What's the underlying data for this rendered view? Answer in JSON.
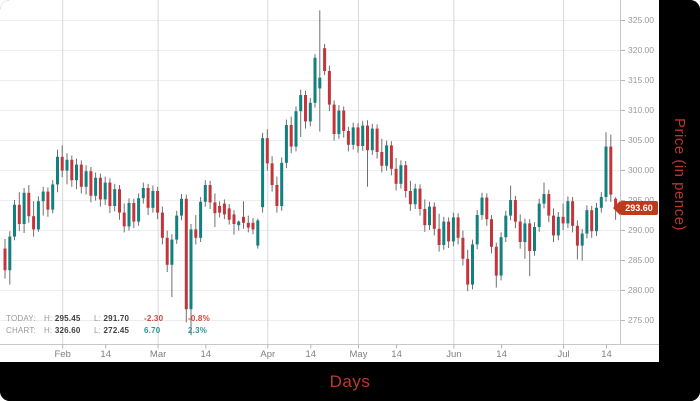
{
  "chart_data": {
    "type": "candlestick",
    "title": "",
    "xlabel": "Days",
    "ylabel": "Price (in pence)",
    "x_axis": {
      "tick_labels": [
        {
          "label": "Feb",
          "index": 12,
          "month_start": true
        },
        {
          "label": "14",
          "index": 21,
          "month_start": false
        },
        {
          "label": "Mar",
          "index": 32,
          "month_start": true
        },
        {
          "label": "14",
          "index": 42,
          "month_start": false
        },
        {
          "label": "Apr",
          "index": 55,
          "month_start": true
        },
        {
          "label": "14",
          "index": 64,
          "month_start": false
        },
        {
          "label": "May",
          "index": 74,
          "month_start": true
        },
        {
          "label": "14",
          "index": 82,
          "month_start": false
        },
        {
          "label": "Jun",
          "index": 94,
          "month_start": true
        },
        {
          "label": "14",
          "index": 104,
          "month_start": false
        },
        {
          "label": "Jul",
          "index": 117,
          "month_start": true
        },
        {
          "label": "14",
          "index": 126,
          "month_start": false
        }
      ]
    },
    "y_axis": {
      "ticks": [
        325,
        320,
        315,
        310,
        305,
        300,
        295,
        290,
        285,
        280,
        275
      ],
      "decimals": 2,
      "range": [
        271,
        328
      ]
    },
    "last_price": 293.6,
    "last_price_label": "293.60",
    "stats": {
      "today": {
        "label": "TODAY:",
        "high_label": "H:",
        "high": "295.45",
        "low_label": "L:",
        "low": "291.70",
        "change": "-2.30",
        "change_pct": "-0.8%"
      },
      "chart": {
        "label": "CHART:",
        "high_label": "H:",
        "high": "326.60",
        "low_label": "L:",
        "low": "272.45",
        "change": "6.70",
        "change_pct": "2.3%"
      }
    },
    "colors": {
      "up": "#12807e",
      "down": "#c3353b",
      "wick": "#6f6f6f",
      "tag": "#bd3a1d",
      "grid": "#ededed",
      "month_grid": "#d9d9d9",
      "axis_line": "#c8c8c8",
      "axis_text": "#9b9b9b",
      "title_red": "#c0382e"
    },
    "candles_ohlc": [
      [
        286.9,
        288.5,
        281.9,
        283.3
      ],
      [
        283.3,
        289.8,
        280.9,
        288.9
      ],
      [
        288.9,
        295.0,
        288.3,
        294.2
      ],
      [
        294.2,
        296.3,
        289.8,
        291.0
      ],
      [
        291.0,
        297.0,
        289.5,
        296.2
      ],
      [
        296.2,
        297.5,
        291.2,
        292.3
      ],
      [
        292.3,
        294.8,
        288.9,
        290.1
      ],
      [
        290.1,
        295.6,
        289.7,
        294.8
      ],
      [
        294.8,
        297.2,
        292.4,
        296.4
      ],
      [
        296.4,
        297.1,
        292.2,
        293.4
      ],
      [
        293.4,
        298.3,
        292.8,
        297.6
      ],
      [
        297.6,
        303.4,
        296.3,
        302.2
      ],
      [
        302.2,
        304.1,
        298.8,
        299.9
      ],
      [
        299.9,
        302.8,
        297.6,
        301.7
      ],
      [
        301.7,
        302.4,
        297.2,
        298.3
      ],
      [
        298.3,
        301.9,
        296.8,
        300.9
      ],
      [
        300.9,
        301.6,
        296.1,
        297.2
      ],
      [
        297.2,
        300.8,
        295.9,
        299.8
      ],
      [
        299.8,
        300.5,
        294.6,
        295.7
      ],
      [
        295.7,
        299.6,
        294.9,
        298.7
      ],
      [
        298.7,
        299.4,
        293.9,
        295.1
      ],
      [
        295.1,
        298.9,
        294.2,
        297.9
      ],
      [
        297.9,
        298.6,
        292.8,
        294.0
      ],
      [
        294.0,
        297.7,
        293.1,
        296.8
      ],
      [
        296.8,
        297.5,
        291.7,
        292.9
      ],
      [
        292.9,
        294.4,
        289.6,
        290.6
      ],
      [
        290.6,
        295.3,
        289.9,
        294.5
      ],
      [
        294.5,
        295.2,
        290.3,
        291.4
      ],
      [
        291.4,
        296.1,
        290.7,
        295.3
      ],
      [
        295.3,
        297.9,
        294.4,
        297.0
      ],
      [
        297.0,
        297.7,
        292.5,
        293.7
      ],
      [
        293.7,
        297.4,
        292.9,
        296.5
      ],
      [
        296.5,
        297.2,
        291.8,
        292.9
      ],
      [
        292.9,
        293.9,
        287.6,
        288.7
      ],
      [
        288.7,
        289.9,
        283.0,
        284.2
      ],
      [
        284.2,
        289.3,
        278.8,
        288.4
      ],
      [
        288.4,
        293.2,
        287.7,
        292.4
      ],
      [
        292.4,
        296.0,
        291.6,
        295.2
      ],
      [
        295.2,
        295.9,
        274.6,
        276.8
      ],
      [
        276.8,
        291.0,
        272.45,
        290.1
      ],
      [
        290.1,
        292.5,
        287.6,
        288.7
      ],
      [
        288.7,
        295.5,
        288.0,
        294.7
      ],
      [
        294.7,
        298.3,
        293.9,
        297.5
      ],
      [
        297.5,
        298.2,
        293.5,
        294.6
      ],
      [
        294.6,
        296.1,
        290.5,
        292.8
      ],
      [
        294.0,
        294.8,
        292.1,
        292.9
      ],
      [
        294.4,
        295.1,
        291.8,
        292.6
      ],
      [
        293.6,
        294.3,
        290.9,
        291.7
      ],
      [
        292.6,
        293.3,
        289.2,
        291.0
      ],
      [
        290.8,
        291.6,
        289.9,
        291.4
      ],
      [
        292.2,
        294.8,
        290.2,
        291.2
      ],
      [
        291.2,
        292.4,
        289.6,
        290.4
      ],
      [
        291.2,
        292.0,
        289.3,
        290.1
      ],
      [
        287.4,
        291.9,
        286.9,
        291.6
      ],
      [
        293.8,
        306.2,
        292.9,
        305.3
      ],
      [
        305.3,
        306.8,
        299.9,
        301.1
      ],
      [
        301.1,
        302.3,
        296.4,
        297.5
      ],
      [
        297.5,
        298.9,
        292.9,
        294.0
      ],
      [
        294.0,
        302.1,
        293.2,
        301.2
      ],
      [
        301.2,
        308.4,
        300.3,
        307.5
      ],
      [
        307.5,
        308.9,
        302.8,
        303.9
      ],
      [
        303.9,
        310.6,
        303.1,
        309.8
      ],
      [
        309.8,
        313.4,
        305.5,
        312.5
      ],
      [
        312.5,
        313.2,
        306.9,
        308.1
      ],
      [
        308.1,
        312.0,
        307.3,
        311.2
      ],
      [
        311.2,
        319.3,
        310.4,
        318.7
      ],
      [
        313.6,
        326.6,
        306.4,
        315.4
      ],
      [
        320.3,
        321.0,
        315.8,
        316.5
      ],
      [
        316.5,
        317.4,
        309.8,
        310.9
      ],
      [
        310.9,
        311.6,
        304.9,
        306.0
      ],
      [
        306.0,
        310.8,
        305.2,
        309.9
      ],
      [
        309.9,
        310.6,
        305.4,
        306.5
      ],
      [
        306.5,
        307.2,
        303.1,
        304.2
      ],
      [
        304.2,
        307.9,
        303.4,
        307.1
      ],
      [
        307.1,
        307.8,
        302.9,
        304.0
      ],
      [
        304.0,
        308.2,
        303.2,
        307.4
      ],
      [
        307.4,
        308.3,
        297.2,
        303.3
      ],
      [
        303.3,
        307.7,
        302.5,
        306.9
      ],
      [
        306.9,
        307.6,
        301.9,
        303.0
      ],
      [
        303.0,
        305.2,
        299.6,
        300.7
      ],
      [
        300.7,
        304.9,
        299.9,
        304.1
      ],
      [
        304.1,
        304.8,
        299.1,
        300.2
      ],
      [
        300.2,
        302.0,
        296.6,
        297.7
      ],
      [
        297.7,
        301.6,
        296.9,
        300.8
      ],
      [
        300.8,
        301.5,
        295.4,
        296.5
      ],
      [
        296.5,
        298.2,
        293.2,
        294.3
      ],
      [
        294.3,
        297.7,
        293.5,
        296.9
      ],
      [
        296.9,
        297.6,
        292.4,
        293.5
      ],
      [
        293.5,
        295.1,
        289.7,
        290.8
      ],
      [
        290.8,
        294.7,
        290.0,
        293.9
      ],
      [
        293.9,
        294.6,
        289.1,
        290.2
      ],
      [
        290.2,
        292.7,
        286.4,
        287.5
      ],
      [
        287.5,
        292.2,
        286.7,
        291.4
      ],
      [
        291.4,
        292.1,
        287.0,
        288.1
      ],
      [
        288.1,
        292.9,
        287.3,
        292.1
      ],
      [
        292.1,
        292.8,
        287.6,
        288.7
      ],
      [
        288.7,
        289.9,
        284.1,
        285.2
      ],
      [
        285.2,
        286.7,
        279.8,
        280.9
      ],
      [
        280.9,
        288.4,
        280.1,
        287.6
      ],
      [
        287.6,
        293.3,
        286.8,
        292.5
      ],
      [
        292.5,
        296.2,
        291.7,
        295.4
      ],
      [
        295.4,
        296.1,
        290.7,
        291.8
      ],
      [
        291.8,
        292.5,
        286.1,
        287.2
      ],
      [
        287.2,
        287.9,
        280.4,
        282.4
      ],
      [
        282.4,
        289.6,
        281.6,
        288.8
      ],
      [
        288.8,
        293.2,
        288.0,
        292.4
      ],
      [
        292.4,
        297.4,
        291.6,
        295.0
      ],
      [
        295.0,
        295.7,
        290.3,
        291.4
      ],
      [
        291.4,
        292.6,
        286.9,
        288.0
      ],
      [
        288.0,
        291.9,
        285.2,
        291.1
      ],
      [
        291.1,
        291.8,
        282.3,
        286.5
      ],
      [
        286.5,
        291.3,
        285.7,
        290.5
      ],
      [
        290.5,
        295.2,
        289.7,
        294.4
      ],
      [
        294.4,
        297.9,
        293.6,
        296.0
      ],
      [
        296.0,
        296.7,
        291.3,
        292.4
      ],
      [
        292.4,
        293.6,
        288.0,
        289.1
      ],
      [
        289.1,
        293.0,
        288.3,
        292.2
      ],
      [
        292.2,
        294.4,
        290.0,
        291.1
      ],
      [
        291.1,
        295.6,
        290.3,
        294.8
      ],
      [
        294.8,
        295.5,
        289.6,
        290.7
      ],
      [
        290.7,
        291.6,
        285.1,
        287.4
      ],
      [
        287.4,
        290.2,
        284.9,
        289.4
      ],
      [
        289.4,
        294.1,
        288.6,
        293.3
      ],
      [
        293.3,
        294.0,
        288.7,
        289.8
      ],
      [
        289.8,
        294.5,
        289.0,
        293.7
      ],
      [
        293.7,
        296.3,
        292.9,
        295.5
      ],
      [
        295.5,
        306.3,
        294.7,
        303.9
      ],
      [
        303.9,
        305.9,
        294.7,
        295.9
      ],
      [
        295.2,
        295.45,
        291.7,
        293.6
      ]
    ]
  }
}
